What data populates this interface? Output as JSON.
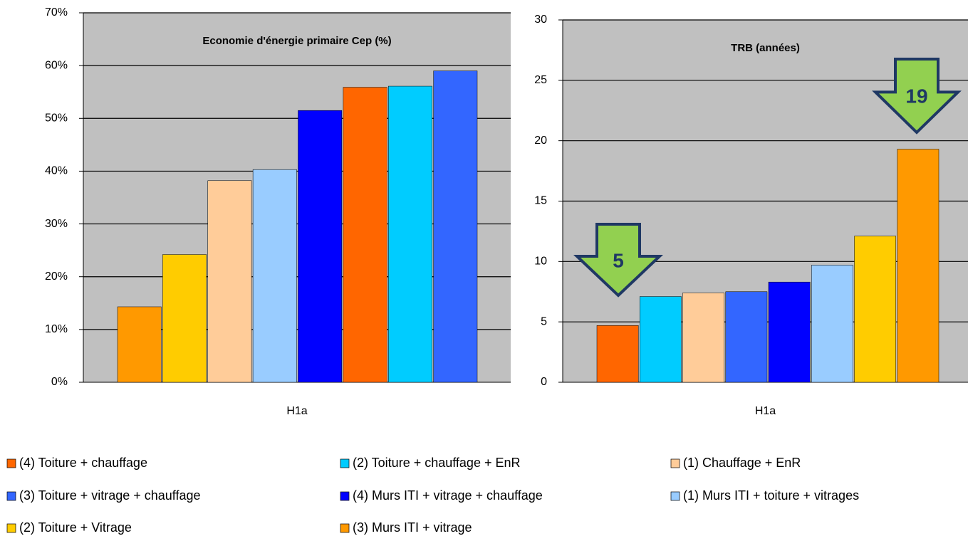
{
  "chart_data": [
    {
      "type": "bar",
      "title": "Economie d'énergie primaire  Cep (%)",
      "categories": [
        "H1a"
      ],
      "ylim": [
        0,
        70
      ],
      "yticks": [
        {
          "value": 0,
          "label": "0%"
        },
        {
          "value": 10,
          "label": "10%"
        },
        {
          "value": 20,
          "label": "20%"
        },
        {
          "value": 30,
          "label": "30%"
        },
        {
          "value": 40,
          "label": "40%"
        },
        {
          "value": 50,
          "label": "50%"
        },
        {
          "value": 60,
          "label": "60%"
        },
        {
          "value": 70,
          "label": "70%"
        }
      ],
      "grid": true,
      "series": [
        {
          "color": "#ff9900",
          "values": [
            14.3
          ]
        },
        {
          "color": "#ffcc00",
          "values": [
            24.2
          ]
        },
        {
          "color": "#ffcc99",
          "values": [
            38.2
          ]
        },
        {
          "color": "#99ccff",
          "values": [
            40.3
          ]
        },
        {
          "color": "#0000ff",
          "values": [
            51.5
          ]
        },
        {
          "color": "#ff6600",
          "values": [
            55.9
          ]
        },
        {
          "color": "#00ccff",
          "values": [
            56.1
          ]
        },
        {
          "color": "#3366ff",
          "values": [
            59.0
          ]
        }
      ]
    },
    {
      "type": "bar",
      "title": "TRB (années)",
      "categories": [
        "H1a"
      ],
      "ylim": [
        0,
        30
      ],
      "yticks": [
        0,
        5,
        10,
        15,
        20,
        25,
        30
      ],
      "grid": true,
      "series": [
        {
          "color": "#ff6600",
          "values": [
            4.7
          ]
        },
        {
          "color": "#00ccff",
          "values": [
            7.1
          ]
        },
        {
          "color": "#ffcc99",
          "values": [
            7.4
          ]
        },
        {
          "color": "#3366ff",
          "values": [
            7.5
          ]
        },
        {
          "color": "#0000ff",
          "values": [
            8.3
          ]
        },
        {
          "color": "#99ccff",
          "values": [
            9.7
          ]
        },
        {
          "color": "#ffcc00",
          "values": [
            12.1
          ]
        },
        {
          "color": "#ff9900",
          "values": [
            19.3
          ]
        }
      ],
      "annotations": [
        "5",
        "19"
      ]
    }
  ],
  "legend": [
    {
      "name": "(4) Toiture + chauffage",
      "color": "#ff6600"
    },
    {
      "name": "(2) Toiture + chauffage + EnR",
      "color": "#00ccff"
    },
    {
      "name": "(1) Chauffage + EnR",
      "color": "#ffcc99"
    },
    {
      "name": "(3) Toiture + vitrage + chauffage",
      "color": "#3366ff"
    },
    {
      "name": "(4) Murs ITI + vitrage + chauffage",
      "color": "#0000ff"
    },
    {
      "name": "(1) Murs ITI + toiture + vitrages",
      "color": "#99ccff"
    },
    {
      "name": "(2) Toiture + Vitrage",
      "color": "#ffcc00"
    },
    {
      "name": "(3) Murs ITI + vitrage",
      "color": "#ff9900"
    }
  ]
}
